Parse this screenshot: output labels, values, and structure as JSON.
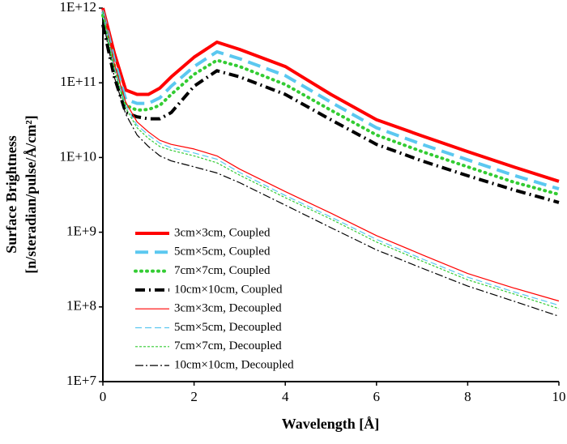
{
  "chart_data": {
    "type": "line",
    "xlabel": "Wavelength [Å]",
    "ylabel": [
      "Surface Brightness",
      "[n/steradian/pulse/Å/cm²]"
    ],
    "x": [
      0,
      0.25,
      0.5,
      0.75,
      1,
      1.25,
      1.5,
      2,
      2.5,
      3,
      4,
      5,
      6,
      7,
      8,
      9,
      10
    ],
    "xlim": [
      0,
      10
    ],
    "xticks": [
      0,
      2,
      4,
      6,
      8,
      10
    ],
    "ylog": true,
    "ylim": [
      10000000,
      1000000000000
    ],
    "yticks": [
      {
        "value": 10000000,
        "label": "1E+7"
      },
      {
        "value": 100000000,
        "label": "1E+8"
      },
      {
        "value": 1000000000,
        "label": "1E+9"
      },
      {
        "value": 10000000000,
        "label": "1E+10"
      },
      {
        "value": 100000000000,
        "label": "1E+11"
      },
      {
        "value": 1000000000000,
        "label": "1E+12"
      }
    ],
    "grid": false,
    "legend": "lower left",
    "series": [
      {
        "name": "3cm×3cm, Coupled",
        "color": "#ff0000",
        "line_width": 4,
        "dash": "none",
        "values": [
          1000000000000.0,
          250000000000.0,
          80000000000.0,
          70000000000.0,
          70000000000.0,
          85000000000.0,
          120000000000.0,
          220000000000.0,
          350000000000.0,
          280000000000.0,
          165000000000.0,
          70000000000.0,
          32000000000.0,
          19500000000.0,
          12000000000.0,
          7500000000.0,
          4800000000.0
        ]
      },
      {
        "name": "5cm×5cm, Coupled",
        "color": "#5bc8f0",
        "line_width": 4,
        "dash": "16,8",
        "values": [
          900000000000.0,
          200000000000.0,
          60000000000.0,
          53000000000.0,
          53000000000.0,
          63000000000.0,
          90000000000.0,
          165000000000.0,
          260000000000.0,
          210000000000.0,
          125000000000.0,
          55000000000.0,
          25000000000.0,
          15000000000.0,
          9300000000.0,
          5800000000.0,
          3800000000.0
        ]
      },
      {
        "name": "7cm×7cm, Coupled",
        "color": "#33cc33",
        "line_width": 4,
        "dash": "1,6",
        "values": [
          800000000000.0,
          170000000000.0,
          50000000000.0,
          43000000000.0,
          44000000000.0,
          50000000000.0,
          70000000000.0,
          130000000000.0,
          200000000000.0,
          165000000000.0,
          95000000000.0,
          43000000000.0,
          20000000000.0,
          12000000000.0,
          7500000000.0,
          4700000000.0,
          3200000000.0
        ]
      },
      {
        "name": "10cm×10cm, Coupled",
        "color": "#000000",
        "line_width": 4,
        "dash": "12,5,2,5",
        "values": [
          600000000000.0,
          120000000000.0,
          40000000000.0,
          35000000000.0,
          33000000000.0,
          33000000000.0,
          40000000000.0,
          90000000000.0,
          145000000000.0,
          120000000000.0,
          70000000000.0,
          32000000000.0,
          15000000000.0,
          9000000000.0,
          5700000000.0,
          3700000000.0,
          2500000000.0
        ]
      },
      {
        "name": "3cm×3cm, Decoupled",
        "color": "#ff0000",
        "line_width": 1.2,
        "dash": "none",
        "values": [
          1000000000000.0,
          180000000000.0,
          55000000000.0,
          30000000000.0,
          22000000000.0,
          17000000000.0,
          15000000000.0,
          13000000000.0,
          10500000000.0,
          7000000000.0,
          3500000000.0,
          1800000000.0,
          900000000.0,
          500000000.0,
          280000000.0,
          180000000.0,
          120000000.0
        ]
      },
      {
        "name": "5cm×5cm, Decoupled",
        "color": "#5bc8f0",
        "line_width": 1.2,
        "dash": "8,4",
        "values": [
          950000000000.0,
          160000000000.0,
          50000000000.0,
          27000000000.0,
          20000000000.0,
          15500000000.0,
          13500000000.0,
          11500000000.0,
          9500000000.0,
          6300000000.0,
          3100000000.0,
          1600000000.0,
          800000000.0,
          440000000.0,
          250000000.0,
          160000000.0,
          105000000.0
        ]
      },
      {
        "name": "7cm×7cm, Decoupled",
        "color": "#33cc33",
        "line_width": 1.2,
        "dash": "3,2",
        "values": [
          900000000000.0,
          150000000000.0,
          46000000000.0,
          25000000000.0,
          18000000000.0,
          14000000000.0,
          12500000000.0,
          10500000000.0,
          8500000000.0,
          5800000000.0,
          2900000000.0,
          1500000000.0,
          740000000.0,
          410000000.0,
          230000000.0,
          150000000.0,
          95000000.0
        ]
      },
      {
        "name": "10cm×10cm, Decoupled",
        "color": "#000000",
        "line_width": 1.2,
        "dash": "10,3,2,3",
        "values": [
          700000000000.0,
          120000000000.0,
          38000000000.0,
          20000000000.0,
          14000000000.0,
          10500000000.0,
          9000000000.0,
          7500000000.0,
          6200000000.0,
          4600000000.0,
          2300000000.0,
          1150000000.0,
          580000000.0,
          330000000.0,
          190000000.0,
          120000000.0,
          75000000.0
        ]
      }
    ]
  }
}
